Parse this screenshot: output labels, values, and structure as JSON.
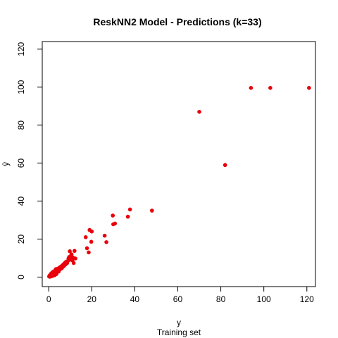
{
  "chart_data": {
    "type": "scatter",
    "title": "ReskNN2 Model - Predictions (k=33)",
    "xlabel": "y",
    "xlabel_sub": "Training set",
    "ylabel": "ŷ",
    "xlim": [
      -3,
      124
    ],
    "ylim": [
      -5,
      124
    ],
    "xticks": [
      0,
      20,
      40,
      60,
      80,
      100,
      120
    ],
    "yticks": [
      0,
      20,
      40,
      60,
      80,
      100,
      120
    ],
    "xtick_labels": [
      "0",
      "20",
      "40",
      "60",
      "80",
      "100",
      "120"
    ],
    "ytick_labels": [
      "0",
      "20",
      "40",
      "60",
      "80",
      "100",
      "120"
    ],
    "marker_color": "#e8000b",
    "grid": false,
    "points": [
      {
        "x": 0.2,
        "y": 0.3
      },
      {
        "x": 0.4,
        "y": 0.8
      },
      {
        "x": 0.5,
        "y": 0.2
      },
      {
        "x": 0.7,
        "y": 1.1
      },
      {
        "x": 0.9,
        "y": 0.5
      },
      {
        "x": 1.0,
        "y": 1.6
      },
      {
        "x": 1.1,
        "y": 0.4
      },
      {
        "x": 1.2,
        "y": 1.9
      },
      {
        "x": 1.4,
        "y": 0.9
      },
      {
        "x": 1.5,
        "y": 2.2
      },
      {
        "x": 1.6,
        "y": 1.3
      },
      {
        "x": 1.8,
        "y": 0.6
      },
      {
        "x": 1.9,
        "y": 2.6
      },
      {
        "x": 2.0,
        "y": 1.2
      },
      {
        "x": 2.2,
        "y": 2.0
      },
      {
        "x": 2.3,
        "y": 3.0
      },
      {
        "x": 2.5,
        "y": 1.5
      },
      {
        "x": 2.6,
        "y": 2.5
      },
      {
        "x": 2.8,
        "y": 1.0
      },
      {
        "x": 3.0,
        "y": 3.2
      },
      {
        "x": 3.1,
        "y": 2.1
      },
      {
        "x": 3.3,
        "y": 4.2
      },
      {
        "x": 3.5,
        "y": 2.6
      },
      {
        "x": 3.6,
        "y": 1.6
      },
      {
        "x": 3.8,
        "y": 3.4
      },
      {
        "x": 4.0,
        "y": 2.8
      },
      {
        "x": 4.1,
        "y": 4.4
      },
      {
        "x": 4.3,
        "y": 3.6
      },
      {
        "x": 4.6,
        "y": 2.9
      },
      {
        "x": 4.8,
        "y": 4.8
      },
      {
        "x": 5.0,
        "y": 3.8
      },
      {
        "x": 5.3,
        "y": 5.2
      },
      {
        "x": 5.5,
        "y": 4.3
      },
      {
        "x": 5.8,
        "y": 5.6
      },
      {
        "x": 6.0,
        "y": 4.6
      },
      {
        "x": 6.3,
        "y": 6.1
      },
      {
        "x": 6.5,
        "y": 5.3
      },
      {
        "x": 6.8,
        "y": 6.6
      },
      {
        "x": 7.0,
        "y": 5.8
      },
      {
        "x": 7.3,
        "y": 7.2
      },
      {
        "x": 7.5,
        "y": 6.4
      },
      {
        "x": 7.8,
        "y": 7.8
      },
      {
        "x": 8.0,
        "y": 6.9
      },
      {
        "x": 8.3,
        "y": 8.2
      },
      {
        "x": 8.6,
        "y": 7.4
      },
      {
        "x": 9.0,
        "y": 8.6
      },
      {
        "x": 9.2,
        "y": 9.8
      },
      {
        "x": 9.5,
        "y": 10.6
      },
      {
        "x": 9.8,
        "y": 13.6
      },
      {
        "x": 10.0,
        "y": 9.2
      },
      {
        "x": 10.3,
        "y": 11.2
      },
      {
        "x": 10.6,
        "y": 12.0
      },
      {
        "x": 11.0,
        "y": 8.8
      },
      {
        "x": 11.2,
        "y": 10.4
      },
      {
        "x": 11.6,
        "y": 7.4
      },
      {
        "x": 12.0,
        "y": 13.8
      },
      {
        "x": 12.4,
        "y": 9.8
      },
      {
        "x": 17.2,
        "y": 21.0
      },
      {
        "x": 17.8,
        "y": 15.2
      },
      {
        "x": 18.6,
        "y": 13.0
      },
      {
        "x": 19.0,
        "y": 24.8
      },
      {
        "x": 19.8,
        "y": 18.6
      },
      {
        "x": 20.0,
        "y": 24.0
      },
      {
        "x": 26.0,
        "y": 21.8
      },
      {
        "x": 26.8,
        "y": 18.4
      },
      {
        "x": 29.8,
        "y": 32.4
      },
      {
        "x": 30.0,
        "y": 27.8
      },
      {
        "x": 30.8,
        "y": 28.2
      },
      {
        "x": 36.8,
        "y": 31.8
      },
      {
        "x": 37.8,
        "y": 35.6
      },
      {
        "x": 48.0,
        "y": 35.0
      },
      {
        "x": 70.0,
        "y": 87.0
      },
      {
        "x": 82.0,
        "y": 59.0
      },
      {
        "x": 94.0,
        "y": 99.6
      },
      {
        "x": 103.0,
        "y": 99.6
      },
      {
        "x": 121.0,
        "y": 99.6
      }
    ]
  }
}
